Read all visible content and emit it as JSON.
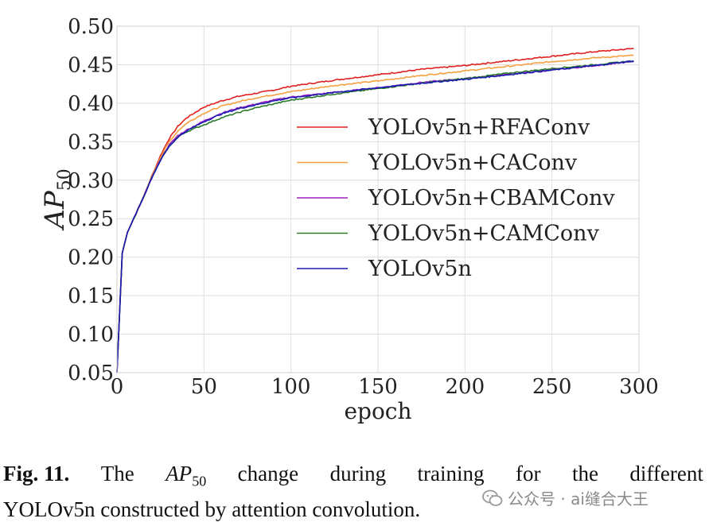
{
  "chart_data": {
    "type": "line",
    "xlabel": "epoch",
    "ylabel_main": "AP",
    "ylabel_sub": "50",
    "xlim": [
      0,
      300
    ],
    "ylim": [
      0.05,
      0.5
    ],
    "xticks": [
      "0",
      "50",
      "100",
      "150",
      "200",
      "250",
      "300"
    ],
    "yticks": [
      "0.05",
      "0.10",
      "0.15",
      "0.20",
      "0.25",
      "0.30",
      "0.35",
      "0.40",
      "0.45",
      "0.50"
    ],
    "grid": true,
    "legend_position": "center-right",
    "x": [
      0,
      3,
      6,
      10,
      15,
      20,
      25,
      30,
      35,
      40,
      50,
      60,
      70,
      80,
      90,
      100,
      125,
      150,
      175,
      200,
      225,
      250,
      275,
      297
    ],
    "series": [
      {
        "name": "YOLOv5n+RFAConv",
        "color": "#e02020",
        "values": [
          0.05,
          0.205,
          0.232,
          0.252,
          0.277,
          0.305,
          0.332,
          0.354,
          0.37,
          0.381,
          0.395,
          0.403,
          0.409,
          0.413,
          0.417,
          0.422,
          0.43,
          0.437,
          0.444,
          0.449,
          0.455,
          0.461,
          0.467,
          0.471
        ]
      },
      {
        "name": "YOLOv5n+CAConv",
        "color": "#f5a040",
        "values": [
          0.05,
          0.205,
          0.232,
          0.252,
          0.277,
          0.304,
          0.33,
          0.35,
          0.364,
          0.374,
          0.387,
          0.396,
          0.402,
          0.407,
          0.411,
          0.415,
          0.423,
          0.429,
          0.436,
          0.442,
          0.448,
          0.454,
          0.459,
          0.462
        ]
      },
      {
        "name": "YOLOv5n+CBAMConv",
        "color": "#a020c0",
        "values": [
          0.05,
          0.205,
          0.232,
          0.252,
          0.277,
          0.303,
          0.327,
          0.346,
          0.358,
          0.365,
          0.377,
          0.387,
          0.394,
          0.399,
          0.404,
          0.408,
          0.414,
          0.42,
          0.427,
          0.432,
          0.438,
          0.443,
          0.449,
          0.454
        ]
      },
      {
        "name": "YOLOv5n+CAMConv",
        "color": "#2a7a2a",
        "values": [
          0.05,
          0.205,
          0.232,
          0.252,
          0.277,
          0.303,
          0.326,
          0.344,
          0.356,
          0.363,
          0.372,
          0.381,
          0.388,
          0.394,
          0.399,
          0.404,
          0.412,
          0.419,
          0.426,
          0.432,
          0.439,
          0.445,
          0.45,
          0.455
        ]
      },
      {
        "name": "YOLOv5n",
        "color": "#1a1ab0",
        "values": [
          0.05,
          0.205,
          0.232,
          0.252,
          0.277,
          0.303,
          0.326,
          0.344,
          0.356,
          0.364,
          0.376,
          0.386,
          0.393,
          0.398,
          0.403,
          0.407,
          0.414,
          0.42,
          0.426,
          0.431,
          0.437,
          0.443,
          0.449,
          0.455
        ]
      }
    ]
  },
  "caption": {
    "fig_label": "Fig. 11.",
    "text_before": "The",
    "math_main": "AP",
    "math_sub": "50",
    "text_after_words": [
      "change",
      "during",
      "training",
      "for",
      "the",
      "different"
    ],
    "line2": "YOLOv5n constructed by attention convolution."
  },
  "watermark": {
    "text": "公众号 · ai缝合大王"
  }
}
